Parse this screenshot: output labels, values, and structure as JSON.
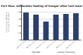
{
  "chart_data": {
    "type": "bar",
    "title": "F&V fiber moderates feeling of hunger after last meal",
    "categories": [
      "Low fiber tertile",
      "Mid fiber tertile",
      "High fiber tertile",
      "Low fiber tertile",
      "Mid fiber tertile",
      "High fiber tertile"
    ],
    "values": [
      0.78,
      0.72,
      0.52,
      0.72,
      0.74,
      0.76
    ],
    "color": "#2b3f6e",
    "ylabel": "Long change difference\nin hunger (1-10 scale)",
    "ylim": [
      0,
      1.0
    ],
    "yticks": [
      {
        "value": 0.0,
        "label": "0.0"
      },
      {
        "value": 0.2,
        "label": "0.2"
      },
      {
        "value": 0.4,
        "label": "0.4"
      },
      {
        "value": 0.6,
        "label": "0.6"
      },
      {
        "value": 0.8,
        "label": "0.8"
      },
      {
        "value": 1.0,
        "label": "1.0"
      }
    ],
    "annotations": [
      "MyPlate",
      "Calorie Counting"
    ],
    "grid": true
  }
}
